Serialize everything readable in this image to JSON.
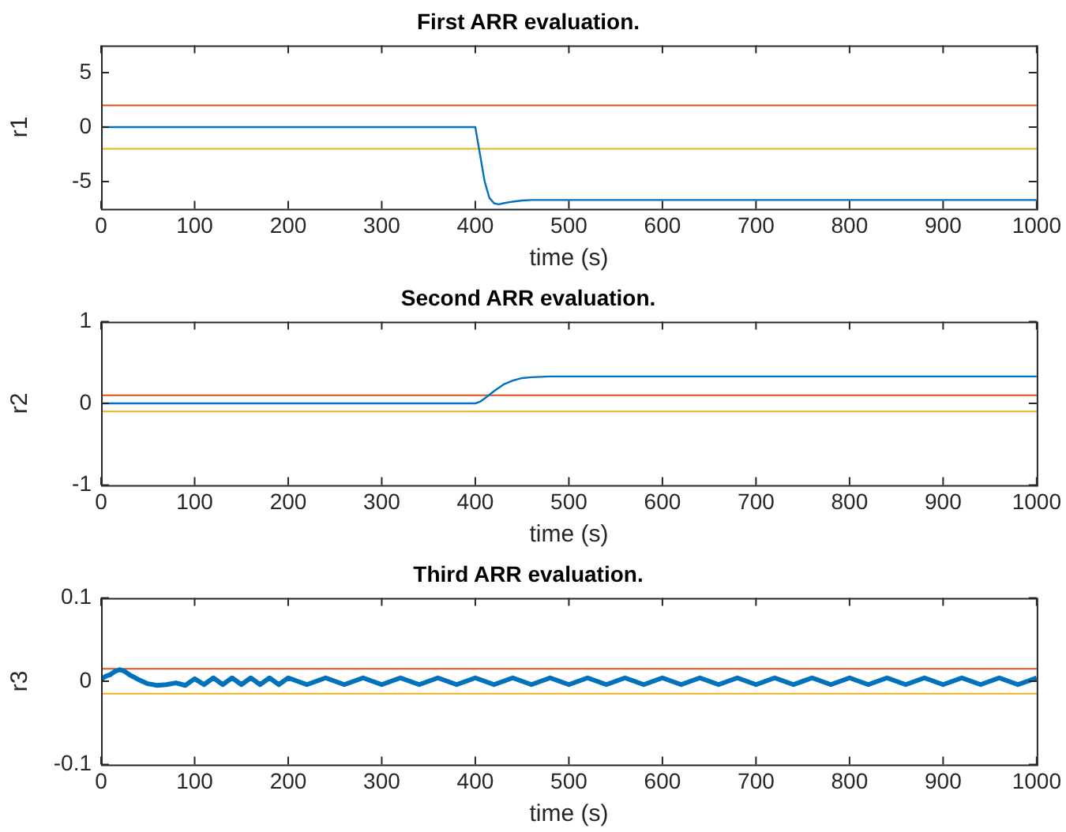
{
  "chart_data": [
    {
      "type": "line",
      "title": "First ARR evaluation.",
      "xlabel": "time (s)",
      "ylabel": "r1",
      "xlim": [
        0,
        1000
      ],
      "xticks": [
        0,
        100,
        200,
        300,
        400,
        500,
        600,
        700,
        800,
        900,
        1000
      ],
      "ylim": [
        -7.5,
        7.5
      ],
      "yticks": [
        -5,
        0,
        5
      ],
      "grid": false,
      "legend": false,
      "marker": "none",
      "series": [
        {
          "color": "#0072bd",
          "x": [
            0,
            400,
            405,
            410,
            415,
            420,
            425,
            430,
            440,
            450,
            460,
            480,
            500,
            1000
          ],
          "values": [
            0,
            0,
            -2.5,
            -5,
            -6.5,
            -7,
            -7.1,
            -7,
            -6.85,
            -6.75,
            -6.7,
            -6.7,
            -6.7,
            -6.7
          ]
        }
      ],
      "ref_lines": [
        {
          "axis": "y",
          "value": 2,
          "color": "#d95319"
        },
        {
          "axis": "y",
          "value": -2,
          "color": "#edb120"
        }
      ]
    },
    {
      "type": "line",
      "title": "Second ARR evaluation.",
      "xlabel": "time (s)",
      "ylabel": "r2",
      "xlim": [
        0,
        1000
      ],
      "xticks": [
        0,
        100,
        200,
        300,
        400,
        500,
        600,
        700,
        800,
        900,
        1000
      ],
      "ylim": [
        -1,
        1
      ],
      "yticks": [
        -1,
        0,
        1
      ],
      "grid": false,
      "legend": false,
      "marker": "none",
      "series": [
        {
          "color": "#0072bd",
          "x": [
            0,
            400,
            405,
            410,
            420,
            430,
            440,
            450,
            460,
            480,
            1000
          ],
          "values": [
            0,
            0,
            0.02,
            0.06,
            0.15,
            0.23,
            0.28,
            0.31,
            0.32,
            0.33,
            0.33
          ]
        }
      ],
      "ref_lines": [
        {
          "axis": "y",
          "value": 0.1,
          "color": "#d95319"
        },
        {
          "axis": "y",
          "value": -0.1,
          "color": "#edb120"
        }
      ]
    },
    {
      "type": "line",
      "title": "Third ARR evaluation.",
      "xlabel": "time (s)",
      "ylabel": "r3",
      "xlim": [
        0,
        1000
      ],
      "xticks": [
        0,
        100,
        200,
        300,
        400,
        500,
        600,
        700,
        800,
        900,
        1000
      ],
      "ylim": [
        -0.1,
        0.1
      ],
      "yticks": [
        -0.1,
        0,
        0.1
      ],
      "grid": false,
      "legend": false,
      "marker": "none",
      "series": [
        {
          "color": "#0072bd",
          "x": [
            0,
            5,
            10,
            15,
            20,
            25,
            30,
            40,
            50,
            60,
            70,
            80,
            90,
            100,
            110,
            120,
            130,
            140,
            150,
            160,
            170,
            180,
            190,
            200,
            220,
            240,
            260,
            280,
            300,
            320,
            340,
            360,
            380,
            400,
            420,
            440,
            460,
            480,
            500,
            520,
            540,
            560,
            580,
            600,
            620,
            640,
            660,
            680,
            700,
            720,
            740,
            760,
            780,
            800,
            820,
            840,
            860,
            880,
            900,
            920,
            940,
            960,
            980,
            1000
          ],
          "values": [
            0.002,
            0.006,
            0.008,
            0.012,
            0.014,
            0.012,
            0.008,
            0.002,
            -0.003,
            -0.005,
            -0.004,
            -0.002,
            -0.005,
            0.003,
            -0.004,
            0.004,
            -0.004,
            0.004,
            -0.004,
            0.004,
            -0.004,
            0.004,
            -0.004,
            0.004,
            -0.004,
            0.004,
            -0.004,
            0.004,
            -0.004,
            0.004,
            -0.004,
            0.004,
            -0.004,
            0.004,
            -0.004,
            0.004,
            -0.004,
            0.004,
            -0.004,
            0.004,
            -0.004,
            0.004,
            -0.004,
            0.004,
            -0.004,
            0.004,
            -0.004,
            0.004,
            -0.004,
            0.004,
            -0.004,
            0.004,
            -0.004,
            0.004,
            -0.004,
            0.004,
            -0.004,
            0.004,
            -0.004,
            0.004,
            -0.004,
            0.004,
            -0.004,
            0.004
          ]
        }
      ],
      "ref_lines": [
        {
          "axis": "y",
          "value": 0.015,
          "color": "#d95319"
        },
        {
          "axis": "y",
          "value": -0.015,
          "color": "#edb120"
        }
      ]
    }
  ]
}
